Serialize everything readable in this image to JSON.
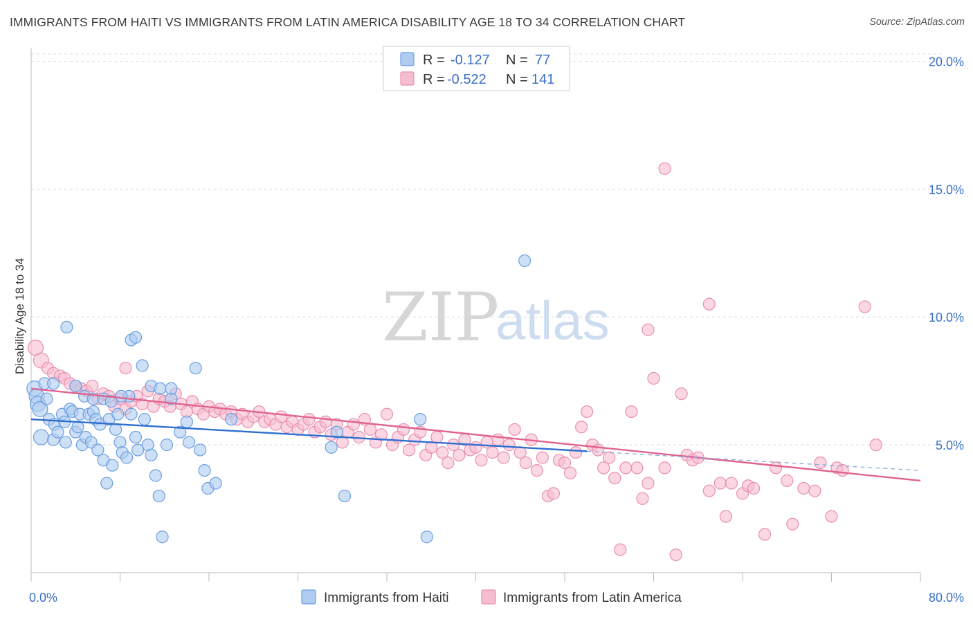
{
  "title": "IMMIGRANTS FROM HAITI VS IMMIGRANTS FROM LATIN AMERICA DISABILITY AGE 18 TO 34 CORRELATION CHART",
  "source": "Source: ZipAtlas.com",
  "watermark": {
    "zip": "ZIP",
    "atlas": "atlas"
  },
  "colors": {
    "haiti_fill": "#aecbf0",
    "haiti_stroke": "#6b9ee0",
    "haiti_line": "#2e6fd0",
    "latin_fill": "#f6bcd0",
    "latin_stroke": "#e98fb0",
    "latin_line": "#e0628f",
    "grid": "#d8d8d8",
    "tick_label": "#3b6fc7"
  },
  "legend_box": {
    "rows": [
      {
        "r_label": "R =",
        "r_value": "-0.127",
        "n_label": "N =",
        "n_value": "77"
      },
      {
        "r_label": "R =",
        "r_value": "-0.522",
        "n_label": "N =",
        "n_value": "141"
      }
    ]
  },
  "chart_data": {
    "type": "scatter",
    "ylabel": "Disability Age 18 to 34",
    "xlabel": "",
    "xlim": [
      0,
      80
    ],
    "ylim": [
      0,
      20.5
    ],
    "x_tick_labels": [
      "0.0%",
      "80.0%"
    ],
    "y_tick_labels": [
      "5.0%",
      "10.0%",
      "15.0%",
      "20.0%"
    ],
    "y_ticks": [
      5,
      10,
      15,
      20
    ],
    "grid": true,
    "legend_position": "bottom-center",
    "series": [
      {
        "name": "Immigrants from Haiti",
        "r": -0.127,
        "n": 77,
        "trend": {
          "x0": 0,
          "y0": 6.0,
          "x1": 50,
          "y1": 4.75,
          "dash_to_x": 80,
          "dash_to_y": 4.0
        },
        "points": [
          [
            0.3,
            7.2
          ],
          [
            0.5,
            6.9
          ],
          [
            0.6,
            6.6
          ],
          [
            0.8,
            6.4
          ],
          [
            0.9,
            5.3
          ],
          [
            1.2,
            7.4
          ],
          [
            1.4,
            6.8
          ],
          [
            1.6,
            6.0
          ],
          [
            2.0,
            5.2
          ],
          [
            2.1,
            5.8
          ],
          [
            2.4,
            5.5
          ],
          [
            2.8,
            6.2
          ],
          [
            3.0,
            5.9
          ],
          [
            3.1,
            5.1
          ],
          [
            3.5,
            6.4
          ],
          [
            3.7,
            6.3
          ],
          [
            4.0,
            5.5
          ],
          [
            4.2,
            5.7
          ],
          [
            4.4,
            6.2
          ],
          [
            4.6,
            5.0
          ],
          [
            4.9,
            5.3
          ],
          [
            5.2,
            6.2
          ],
          [
            5.4,
            5.1
          ],
          [
            5.6,
            6.3
          ],
          [
            5.8,
            6.0
          ],
          [
            6.0,
            4.8
          ],
          [
            6.2,
            5.8
          ],
          [
            6.5,
            4.4
          ],
          [
            6.8,
            3.5
          ],
          [
            7.0,
            6.0
          ],
          [
            7.3,
            4.2
          ],
          [
            7.6,
            5.6
          ],
          [
            7.8,
            6.2
          ],
          [
            8.0,
            5.1
          ],
          [
            8.2,
            4.7
          ],
          [
            8.6,
            4.5
          ],
          [
            8.8,
            6.9
          ],
          [
            9.0,
            6.2
          ],
          [
            9.4,
            5.3
          ],
          [
            9.6,
            4.8
          ],
          [
            10.2,
            6.0
          ],
          [
            10.5,
            5.0
          ],
          [
            10.8,
            4.6
          ],
          [
            11.2,
            3.8
          ],
          [
            11.5,
            3.0
          ],
          [
            11.8,
            1.4
          ],
          [
            12.2,
            5.0
          ],
          [
            12.6,
            6.8
          ],
          [
            13.4,
            5.5
          ],
          [
            14.2,
            5.1
          ],
          [
            14.8,
            8.0
          ],
          [
            15.2,
            4.8
          ],
          [
            15.6,
            4.0
          ],
          [
            15.9,
            3.3
          ],
          [
            16.6,
            3.5
          ],
          [
            2.0,
            7.4
          ],
          [
            3.2,
            9.6
          ],
          [
            4.0,
            7.3
          ],
          [
            4.8,
            6.9
          ],
          [
            5.6,
            6.8
          ],
          [
            6.5,
            6.8
          ],
          [
            7.2,
            6.7
          ],
          [
            8.1,
            6.9
          ],
          [
            9.0,
            9.1
          ],
          [
            9.4,
            9.2
          ],
          [
            10.0,
            8.1
          ],
          [
            10.8,
            7.3
          ],
          [
            11.6,
            7.2
          ],
          [
            12.6,
            7.2
          ],
          [
            14.0,
            5.9
          ],
          [
            18.0,
            6.0
          ],
          [
            27.0,
            4.9
          ],
          [
            27.5,
            5.5
          ],
          [
            28.2,
            3.0
          ],
          [
            35.0,
            6.0
          ],
          [
            35.6,
            1.4
          ],
          [
            44.4,
            12.2
          ]
        ]
      },
      {
        "name": "Immigrants from Latin America",
        "r": -0.522,
        "n": 141,
        "trend": {
          "x0": 0,
          "y0": 7.2,
          "x1": 80,
          "y1": 3.6
        },
        "points": [
          [
            0.4,
            8.8
          ],
          [
            0.9,
            8.3
          ],
          [
            1.5,
            8.0
          ],
          [
            2.0,
            7.8
          ],
          [
            2.6,
            7.7
          ],
          [
            3.0,
            7.6
          ],
          [
            3.5,
            7.4
          ],
          [
            4.0,
            7.3
          ],
          [
            4.5,
            7.2
          ],
          [
            5.0,
            7.1
          ],
          [
            5.5,
            7.3
          ],
          [
            6.0,
            6.8
          ],
          [
            6.5,
            7.0
          ],
          [
            7.0,
            6.9
          ],
          [
            7.5,
            6.5
          ],
          [
            8.0,
            6.8
          ],
          [
            8.5,
            6.4
          ],
          [
            9.0,
            6.7
          ],
          [
            9.5,
            6.9
          ],
          [
            10.0,
            6.6
          ],
          [
            10.5,
            7.1
          ],
          [
            11.0,
            6.5
          ],
          [
            11.5,
            6.8
          ],
          [
            12.0,
            6.7
          ],
          [
            12.5,
            6.5
          ],
          [
            13.0,
            7.0
          ],
          [
            13.5,
            6.6
          ],
          [
            14.0,
            6.3
          ],
          [
            14.5,
            6.7
          ],
          [
            15.0,
            6.4
          ],
          [
            15.5,
            6.2
          ],
          [
            16.0,
            6.5
          ],
          [
            16.5,
            6.3
          ],
          [
            17.0,
            6.4
          ],
          [
            17.5,
            6.2
          ],
          [
            18.0,
            6.3
          ],
          [
            18.5,
            6.0
          ],
          [
            19.0,
            6.2
          ],
          [
            19.5,
            5.9
          ],
          [
            20.0,
            6.1
          ],
          [
            20.5,
            6.3
          ],
          [
            21.0,
            5.9
          ],
          [
            21.5,
            6.0
          ],
          [
            22.0,
            5.8
          ],
          [
            22.5,
            6.1
          ],
          [
            23.0,
            5.7
          ],
          [
            23.5,
            5.9
          ],
          [
            24.0,
            5.6
          ],
          [
            24.5,
            5.8
          ],
          [
            25.0,
            6.0
          ],
          [
            25.5,
            5.5
          ],
          [
            26.0,
            5.7
          ],
          [
            26.5,
            5.9
          ],
          [
            27.0,
            5.4
          ],
          [
            27.5,
            5.8
          ],
          [
            28.0,
            5.1
          ],
          [
            28.5,
            5.5
          ],
          [
            29.0,
            5.8
          ],
          [
            29.5,
            5.3
          ],
          [
            30.0,
            6.0
          ],
          [
            30.5,
            5.6
          ],
          [
            31.0,
            5.1
          ],
          [
            31.5,
            5.4
          ],
          [
            32.0,
            6.2
          ],
          [
            32.5,
            5.0
          ],
          [
            33.0,
            5.3
          ],
          [
            33.5,
            5.6
          ],
          [
            34.0,
            4.8
          ],
          [
            34.5,
            5.2
          ],
          [
            35.0,
            5.5
          ],
          [
            35.5,
            4.6
          ],
          [
            36.0,
            4.9
          ],
          [
            36.5,
            5.3
          ],
          [
            37.0,
            4.7
          ],
          [
            37.5,
            4.3
          ],
          [
            38.0,
            5.0
          ],
          [
            38.5,
            4.6
          ],
          [
            39.0,
            5.2
          ],
          [
            39.5,
            4.8
          ],
          [
            40.0,
            4.9
          ],
          [
            40.5,
            4.4
          ],
          [
            41.0,
            5.1
          ],
          [
            41.5,
            4.7
          ],
          [
            42.0,
            5.2
          ],
          [
            42.5,
            4.5
          ],
          [
            43.0,
            5.0
          ],
          [
            43.5,
            5.6
          ],
          [
            44.0,
            4.7
          ],
          [
            44.5,
            4.3
          ],
          [
            45.0,
            5.2
          ],
          [
            45.5,
            4.0
          ],
          [
            46.0,
            4.5
          ],
          [
            46.5,
            3.0
          ],
          [
            47.0,
            3.1
          ],
          [
            47.5,
            4.4
          ],
          [
            48.0,
            4.3
          ],
          [
            48.5,
            3.9
          ],
          [
            49.0,
            4.7
          ],
          [
            49.5,
            5.7
          ],
          [
            50.0,
            6.3
          ],
          [
            50.5,
            5.0
          ],
          [
            51.0,
            4.8
          ],
          [
            51.5,
            4.1
          ],
          [
            52.0,
            4.5
          ],
          [
            52.5,
            3.7
          ],
          [
            53.0,
            0.9
          ],
          [
            53.5,
            4.1
          ],
          [
            54.0,
            6.3
          ],
          [
            54.5,
            4.1
          ],
          [
            55.0,
            2.9
          ],
          [
            55.5,
            3.5
          ],
          [
            56.0,
            7.6
          ],
          [
            57.0,
            4.1
          ],
          [
            58.0,
            0.7
          ],
          [
            58.5,
            7.0
          ],
          [
            59.0,
            4.6
          ],
          [
            59.5,
            4.4
          ],
          [
            60.0,
            4.5
          ],
          [
            61.0,
            3.2
          ],
          [
            62.0,
            3.5
          ],
          [
            62.5,
            2.2
          ],
          [
            63.0,
            3.5
          ],
          [
            64.0,
            3.1
          ],
          [
            64.5,
            3.4
          ],
          [
            65.0,
            3.3
          ],
          [
            66.0,
            1.5
          ],
          [
            67.0,
            4.1
          ],
          [
            68.0,
            3.6
          ],
          [
            68.5,
            1.9
          ],
          [
            69.5,
            3.3
          ],
          [
            70.5,
            3.2
          ],
          [
            71.0,
            4.3
          ],
          [
            72.0,
            2.2
          ],
          [
            72.5,
            4.1
          ],
          [
            73.0,
            4.0
          ],
          [
            76.0,
            5.0
          ],
          [
            55.5,
            9.5
          ],
          [
            57.0,
            15.8
          ],
          [
            61.0,
            10.5
          ],
          [
            75.0,
            10.4
          ],
          [
            8.5,
            8.0
          ]
        ]
      }
    ]
  }
}
